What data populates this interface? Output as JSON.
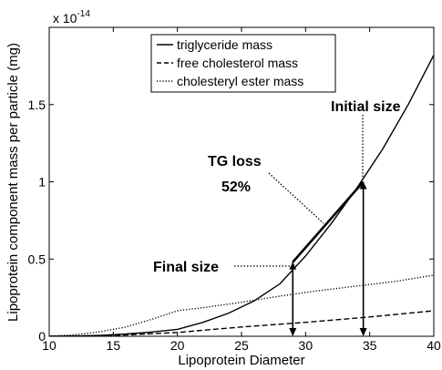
{
  "chart_data": {
    "type": "line",
    "xlabel": "Lipoprotein Diameter",
    "ylabel": "Lipoprotein component mass per particle (mg)",
    "scale_label": "x 10",
    "scale_exponent": "-14",
    "xlim": [
      10,
      40
    ],
    "ylim": [
      0,
      2
    ],
    "x_ticks": [
      10,
      15,
      20,
      25,
      30,
      35,
      40
    ],
    "x_tick_labels": [
      "10",
      "15",
      "20",
      "25",
      "30",
      "35",
      "40"
    ],
    "y_ticks": [
      0,
      0.5,
      1,
      1.5
    ],
    "y_tick_labels": [
      "0",
      "0.5",
      "1",
      "1.5"
    ],
    "grid": false,
    "legend_position": "top",
    "series": [
      {
        "name": "triglyceride mass",
        "style": "solid",
        "x": [
          10,
          12,
          14,
          16,
          18,
          20,
          22,
          24,
          26,
          28,
          30,
          32,
          34,
          36,
          38,
          40
        ],
        "y": [
          0,
          0.002,
          0.006,
          0.015,
          0.028,
          0.045,
          0.09,
          0.15,
          0.23,
          0.34,
          0.52,
          0.73,
          0.96,
          1.21,
          1.5,
          1.82
        ]
      },
      {
        "name": "free cholesterol mass",
        "style": "dashed",
        "x": [
          10,
          15,
          20,
          25,
          30,
          35,
          40
        ],
        "y": [
          0,
          0.005,
          0.025,
          0.06,
          0.09,
          0.125,
          0.165
        ]
      },
      {
        "name": "cholesteryl ester mass",
        "style": "dotted",
        "x": [
          10,
          12,
          14,
          16,
          18,
          20,
          22,
          25,
          28,
          31,
          34,
          37,
          40
        ],
        "y": [
          0,
          0.01,
          0.03,
          0.06,
          0.11,
          0.165,
          0.185,
          0.22,
          0.26,
          0.295,
          0.325,
          0.355,
          0.395
        ]
      }
    ],
    "annotations": {
      "initial_label": "Initial size",
      "tg_loss_label": "TG loss",
      "tg_loss_value": "52%",
      "final_label": "Final size"
    },
    "markers": {
      "initial_size_x": 34.5,
      "initial_size_y": 1.0,
      "final_size_x": 29,
      "final_size_y": 0.48
    }
  }
}
